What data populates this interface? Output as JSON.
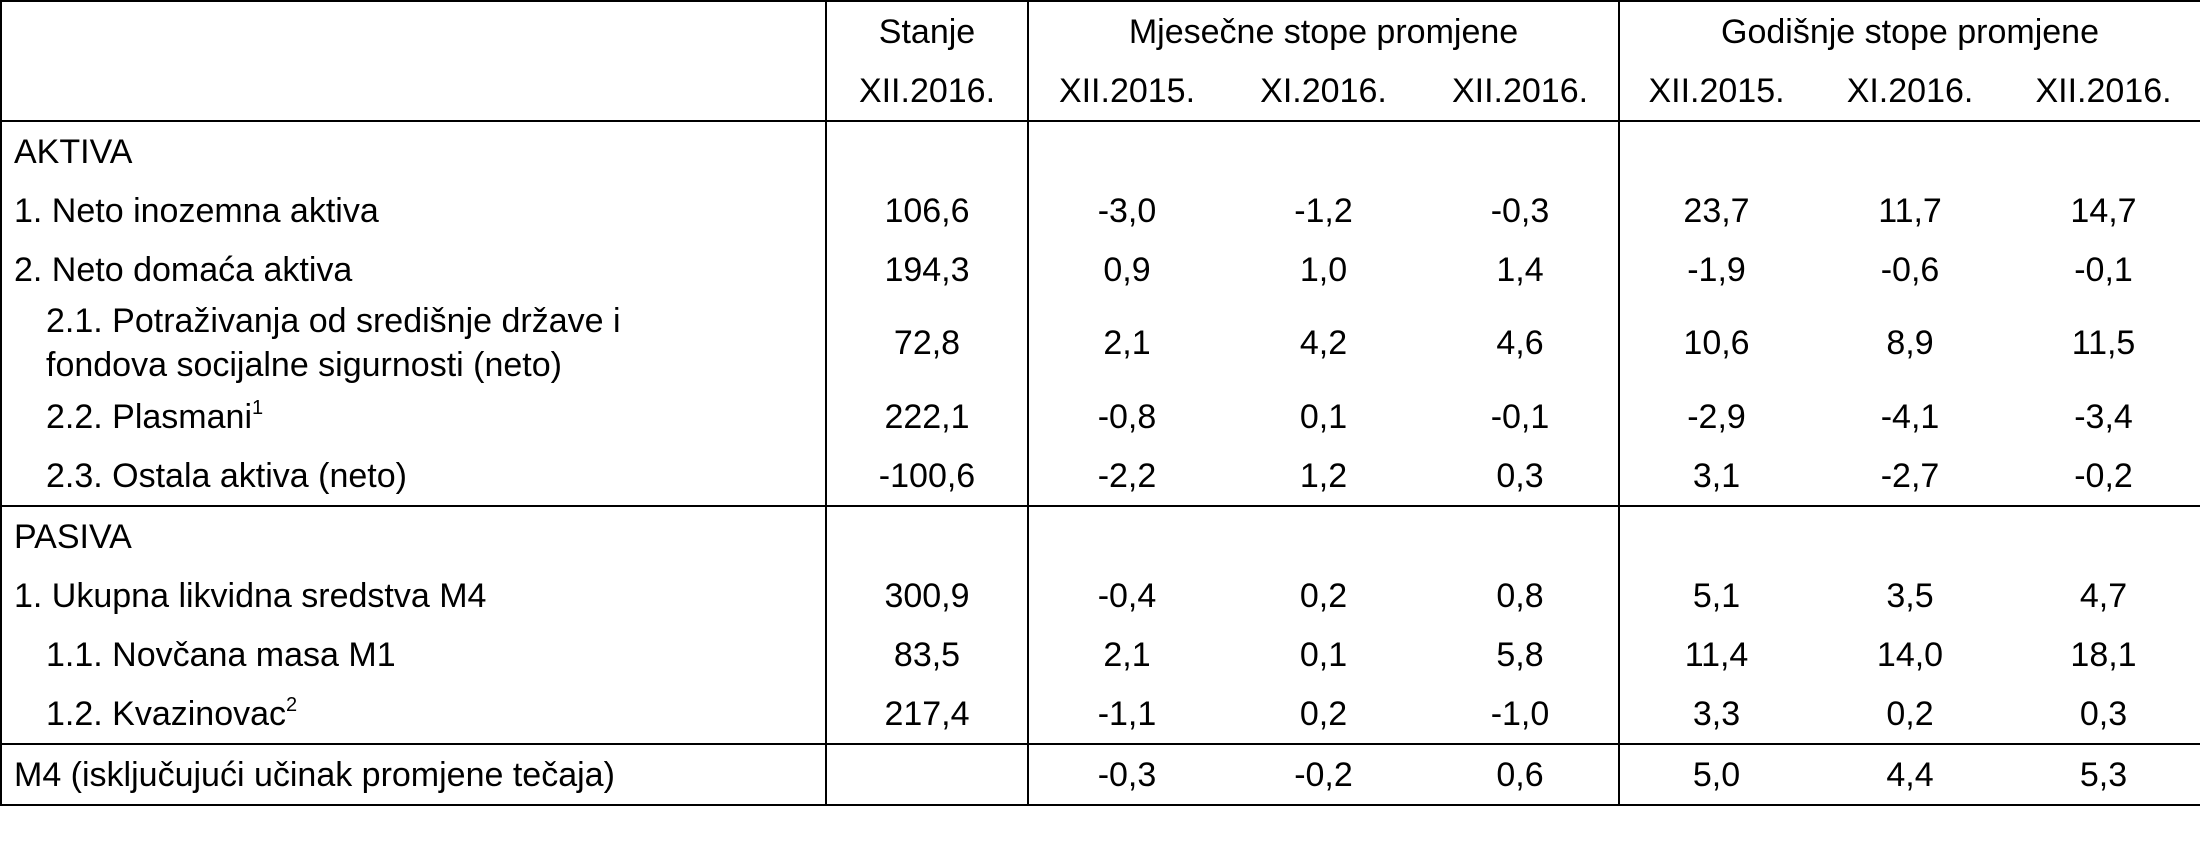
{
  "header": {
    "stanje": "Stanje",
    "monthly": "Mjesečne stope promjene",
    "annual": "Godišnje stope promjene",
    "columns": [
      "XII.2016.",
      "XII.2015.",
      "XI.2016.",
      "XII.2016.",
      "XII.2015.",
      "XI.2016.",
      "XII.2016."
    ]
  },
  "sections": [
    {
      "title": "AKTIVA",
      "rows": [
        {
          "label": [
            "1. Neto inozemna aktiva"
          ],
          "cells": [
            "106,6",
            "-3,0",
            "-1,2",
            "-0,3",
            "23,7",
            "11,7",
            "14,7"
          ]
        },
        {
          "label": [
            "2. Neto domaća aktiva"
          ],
          "cells": [
            "194,3",
            "0,9",
            "1,0",
            "1,4",
            "-1,9",
            "-0,6",
            "-0,1"
          ],
          "children": [
            {
              "label": [
                "2.1. Potraživanja od središnje države i",
                "fondova socijalne sigurnosti (neto)"
              ],
              "cells": [
                "72,8",
                "2,1",
                "4,2",
                "4,6",
                "10,6",
                "8,9",
                "11,5"
              ]
            },
            {
              "label": [
                "2.2. Plasmani"
              ],
              "sup": "1",
              "cells": [
                "222,1",
                "-0,8",
                "0,1",
                "-0,1",
                "-2,9",
                "-4,1",
                "-3,4"
              ]
            },
            {
              "label": [
                "2.3. Ostala aktiva (neto)"
              ],
              "cells": [
                "-100,6",
                "-2,2",
                "1,2",
                "0,3",
                "3,1",
                "-2,7",
                "-0,2"
              ]
            }
          ]
        }
      ]
    },
    {
      "title": "PASIVA",
      "rows": [
        {
          "label": [
            "1. Ukupna likvidna sredstva M4"
          ],
          "cells": [
            "300,9",
            "-0,4",
            "0,2",
            "0,8",
            "5,1",
            "3,5",
            "4,7"
          ],
          "children": [
            {
              "label": [
                "1.1. Novčana masa M1"
              ],
              "cells": [
                "83,5",
                "2,1",
                "0,1",
                "5,8",
                "11,4",
                "14,0",
                "18,1"
              ]
            },
            {
              "label": [
                "1.2. Kvazinovac"
              ],
              "sup": "2",
              "cells": [
                "217,4",
                "-1,1",
                "0,2",
                "-1,0",
                "3,3",
                "0,2",
                "0,3"
              ]
            }
          ]
        }
      ]
    }
  ],
  "footer": {
    "label": "M4 (isključujući učinak promjene tečaja)",
    "cells": [
      null,
      "-0,3",
      "-0,2",
      "0,6",
      "5,0",
      "4,4",
      "5,3"
    ]
  }
}
